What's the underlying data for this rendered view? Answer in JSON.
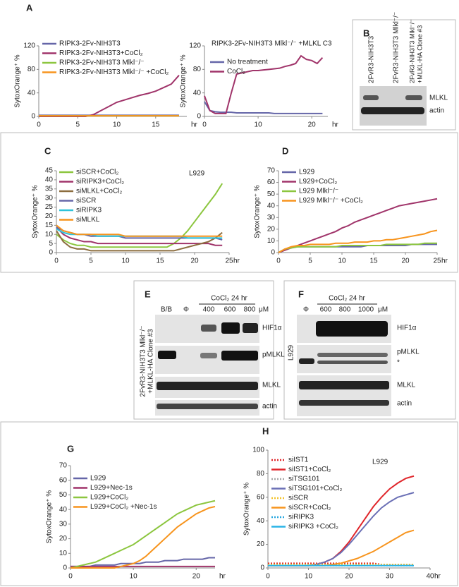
{
  "panel_labels": [
    "A",
    "B",
    "C",
    "D",
    "E",
    "F",
    "G",
    "H"
  ],
  "chart_data": [
    {
      "type": "line",
      "panel": "A",
      "ylabel": "SytoxOrange⁺ %",
      "xlabel": "hr",
      "x": [
        0,
        1,
        2,
        3,
        4,
        5,
        6,
        7,
        8,
        9,
        10,
        11,
        12,
        13,
        14,
        15,
        16,
        17,
        18
      ],
      "xlim": [
        0,
        19
      ],
      "xticks": [
        0,
        5,
        10,
        15
      ],
      "ylim": [
        0,
        120
      ],
      "yticks": [
        0,
        40,
        80,
        120
      ],
      "legend": "upper left",
      "series": [
        {
          "name": "RIPK3-2Fv-NIH3T3",
          "color": "#6566a8",
          "values": [
            2,
            2,
            2,
            2,
            2,
            2,
            2,
            2,
            2,
            2,
            2,
            2,
            2,
            2,
            2,
            2,
            2,
            2,
            2
          ]
        },
        {
          "name": "RIPK3-2Fv-NIH3T3+CoCl₂",
          "color": "#a0346a",
          "values": [
            0,
            0,
            0,
            0,
            0,
            0,
            0,
            3,
            10,
            17,
            24,
            28,
            32,
            36,
            39,
            43,
            49,
            55,
            70
          ]
        },
        {
          "name": "RIPK3-2Fv-NIH3T3 Mlkl⁻/⁻",
          "color": "#8cc63f",
          "values": [
            1,
            1,
            1,
            1,
            1,
            1,
            1,
            1,
            1,
            1,
            1,
            1,
            1,
            1,
            1,
            1,
            1,
            1,
            1
          ]
        },
        {
          "name": "RIPK3-2Fv-NIH3T3 Mlkl⁻/⁻ +CoCl₂",
          "color": "#f7941d",
          "values": [
            1,
            1,
            1,
            1,
            1,
            1,
            1,
            1,
            1,
            1,
            1,
            1,
            1,
            1,
            1,
            1,
            1,
            1,
            1
          ]
        }
      ]
    },
    {
      "type": "line",
      "title": "RIPK3-2Fv-NIH3T3 Mlkl⁻/⁻ +MLKL C3",
      "ylabel": "SytoxOrange⁺ %",
      "xlabel": "hr",
      "x": [
        0,
        1,
        2,
        3,
        4,
        5,
        6,
        7,
        8,
        9,
        10,
        11,
        12,
        13,
        14,
        15,
        16,
        17,
        18,
        19,
        20,
        21,
        22
      ],
      "xlim": [
        0,
        23
      ],
      "xticks": [
        0,
        10,
        20
      ],
      "ylim": [
        0,
        120
      ],
      "yticks": [
        0,
        40,
        80,
        120
      ],
      "legend": "upper left",
      "series": [
        {
          "name": "No treatment",
          "color": "#6566a8",
          "values": [
            25,
            10,
            8,
            7,
            7,
            7,
            6,
            6,
            6,
            6,
            6,
            6,
            6,
            5,
            5,
            5,
            5,
            5,
            5,
            5,
            5,
            5,
            5
          ]
        },
        {
          "name": "CoCl₂",
          "color": "#a0346a",
          "values": [
            35,
            10,
            5,
            5,
            5,
            40,
            72,
            74,
            76,
            78,
            78,
            79,
            80,
            81,
            82,
            85,
            87,
            90,
            103,
            97,
            95,
            90,
            100
          ]
        }
      ]
    },
    {
      "type": "line",
      "panel": "C",
      "annotation": "L929",
      "ylabel": "SytoxOrange⁺ %",
      "xlabel": "hr",
      "x": [
        0,
        1,
        2,
        3,
        4,
        5,
        6,
        7,
        8,
        9,
        10,
        11,
        12,
        13,
        14,
        15,
        16,
        17,
        18,
        19,
        20,
        21,
        22,
        23,
        24
      ],
      "xlim": [
        0,
        25
      ],
      "xticks": [
        0,
        5,
        10,
        15,
        20,
        25
      ],
      "ylim": [
        0,
        45
      ],
      "yticks": [
        0,
        5,
        10,
        15,
        20,
        25,
        30,
        35,
        40,
        45
      ],
      "legend": "upper left",
      "series": [
        {
          "name": "siSCR+CoCl₂",
          "color": "#8cc63f",
          "values": [
            10,
            7,
            5,
            4,
            4,
            3,
            3,
            3,
            3,
            3,
            3,
            3,
            3,
            3,
            3,
            3,
            3,
            5,
            8,
            12,
            17,
            22,
            27,
            32,
            38
          ]
        },
        {
          "name": "siRIPK3+CoCl₂",
          "color": "#a0346a",
          "values": [
            14,
            10,
            8,
            7,
            6,
            6,
            5,
            5,
            5,
            5,
            5,
            5,
            5,
            5,
            5,
            5,
            5,
            5,
            5,
            5,
            5,
            5,
            5,
            4,
            4
          ]
        },
        {
          "name": "siMLKL+CoCl₂",
          "color": "#8c6d3f",
          "values": [
            12,
            6,
            3,
            2,
            2,
            1,
            1,
            1,
            1,
            1,
            1,
            1,
            1,
            1,
            1,
            1,
            1,
            1,
            2,
            3,
            4,
            5,
            6,
            8,
            11
          ]
        },
        {
          "name": "siSCR",
          "color": "#6566a8",
          "values": [
            14,
            12,
            11,
            10,
            10,
            9,
            9,
            9,
            9,
            9,
            8,
            8,
            8,
            8,
            8,
            8,
            8,
            8,
            8,
            8,
            8,
            8,
            8,
            8,
            7
          ]
        },
        {
          "name": "siRIPK3",
          "color": "#2fc3d9",
          "values": [
            13,
            11,
            10,
            10,
            10,
            10,
            9,
            9,
            9,
            9,
            9,
            9,
            9,
            9,
            9,
            9,
            9,
            9,
            9,
            8,
            8,
            8,
            8,
            8,
            8
          ]
        },
        {
          "name": "siMLKL",
          "color": "#f7941d",
          "values": [
            15,
            12,
            11,
            10,
            10,
            10,
            10,
            10,
            10,
            10,
            9,
            9,
            9,
            9,
            9,
            9,
            9,
            9,
            9,
            9,
            9,
            9,
            9,
            9,
            9
          ]
        }
      ]
    },
    {
      "type": "line",
      "panel": "D",
      "ylabel": "SytoxOrange⁺ %",
      "xlabel": "hr",
      "x": [
        0,
        1,
        2,
        3,
        4,
        5,
        6,
        7,
        8,
        9,
        10,
        11,
        12,
        13,
        14,
        15,
        16,
        17,
        18,
        19,
        20,
        21,
        22,
        23,
        24,
        25
      ],
      "xlim": [
        0,
        25
      ],
      "xticks": [
        0,
        5,
        10,
        15,
        20,
        25
      ],
      "ylim": [
        0,
        70
      ],
      "yticks": [
        0,
        10,
        20,
        30,
        40,
        50,
        60,
        70
      ],
      "legend": "upper left",
      "series": [
        {
          "name": "L929",
          "color": "#6566a8",
          "values": [
            0,
            3,
            4,
            5,
            5,
            5,
            5,
            5,
            5,
            5,
            5,
            5,
            5,
            5,
            6,
            6,
            6,
            6,
            6,
            6,
            6,
            7,
            7,
            7,
            7,
            7
          ]
        },
        {
          "name": "L929+CoCl₂",
          "color": "#a0346a",
          "values": [
            0,
            2,
            4,
            6,
            8,
            10,
            12,
            14,
            16,
            18,
            21,
            23,
            26,
            28,
            30,
            32,
            34,
            36,
            38,
            40,
            41,
            42,
            43,
            44,
            45,
            46
          ]
        },
        {
          "name": "L929 Mlkl⁻/⁻",
          "color": "#8cc63f",
          "values": [
            0,
            3,
            4,
            5,
            5,
            5,
            5,
            5,
            5,
            5,
            6,
            6,
            6,
            6,
            6,
            6,
            6,
            7,
            7,
            7,
            7,
            7,
            7,
            8,
            8,
            8
          ]
        },
        {
          "name": "L929 Mlkl⁻/⁻ +CoCl₂",
          "color": "#f7941d",
          "values": [
            0,
            3,
            5,
            6,
            6,
            7,
            7,
            7,
            7,
            8,
            8,
            8,
            9,
            9,
            9,
            10,
            10,
            11,
            11,
            12,
            13,
            14,
            15,
            16,
            18,
            19
          ]
        }
      ]
    },
    {
      "type": "line",
      "panel": "G",
      "ylabel": "SytoxOrange⁺ %",
      "xlabel": "hr",
      "x": [
        0,
        1,
        2,
        3,
        4,
        5,
        6,
        7,
        8,
        9,
        10,
        11,
        12,
        13,
        14,
        15,
        16,
        17,
        18,
        19,
        20,
        21,
        22,
        23
      ],
      "xlim": [
        0,
        23
      ],
      "xticks": [
        0,
        10,
        20
      ],
      "ylim": [
        0,
        70
      ],
      "yticks": [
        0,
        10,
        20,
        30,
        40,
        50,
        60,
        70
      ],
      "legend": "upper left",
      "series": [
        {
          "name": "L929",
          "color": "#6566a8",
          "values": [
            1,
            1,
            1,
            1,
            2,
            2,
            2,
            2,
            3,
            3,
            3,
            3,
            4,
            4,
            4,
            5,
            5,
            5,
            6,
            6,
            6,
            6,
            7,
            7
          ]
        },
        {
          "name": "L929+Nec-1s",
          "color": "#a0346a",
          "values": [
            1,
            1,
            1,
            1,
            1,
            1,
            1,
            1,
            1,
            1,
            1,
            1,
            1,
            1,
            1,
            1,
            1,
            1,
            1,
            1,
            1,
            1,
            1,
            1
          ]
        },
        {
          "name": "L929+CoCl₂",
          "color": "#8cc63f",
          "values": [
            0,
            1,
            2,
            3,
            4,
            6,
            8,
            10,
            12,
            14,
            16,
            19,
            22,
            25,
            28,
            31,
            34,
            37,
            39,
            41,
            43,
            44,
            45,
            46
          ]
        },
        {
          "name": "L929+CoCl₂ +Nec-1s",
          "color": "#f7941d",
          "values": [
            0,
            0,
            0,
            0,
            0,
            0,
            0,
            0,
            1,
            2,
            3,
            5,
            8,
            12,
            16,
            20,
            24,
            28,
            31,
            34,
            37,
            39,
            41,
            42
          ]
        }
      ]
    },
    {
      "type": "line",
      "panel": "H",
      "annotation": "L929",
      "ylabel": "SytoxOrange⁺ %",
      "xlabel": "hr",
      "x": [
        0,
        2,
        4,
        6,
        8,
        10,
        12,
        14,
        16,
        18,
        20,
        22,
        24,
        26,
        28,
        30,
        32,
        34,
        36
      ],
      "xlim": [
        0,
        40
      ],
      "xticks": [
        0,
        10,
        20,
        30,
        40
      ],
      "ylim": [
        0,
        100
      ],
      "yticks": [
        0,
        20,
        40,
        60,
        80,
        100
      ],
      "legend": "upper left",
      "series": [
        {
          "name": "siIST1",
          "color": "#e0262b",
          "dotted": true,
          "values": [
            4,
            4,
            4,
            4,
            4,
            4,
            4,
            4,
            4,
            4,
            4,
            4,
            4,
            4,
            3,
            3,
            3,
            3,
            3
          ]
        },
        {
          "name": "siIST1+CoCl₂",
          "color": "#e0262b",
          "values": [
            2,
            2,
            2,
            2,
            2,
            2,
            3,
            5,
            8,
            14,
            22,
            32,
            42,
            52,
            60,
            67,
            72,
            76,
            78
          ]
        },
        {
          "name": "siTSG101",
          "color": "#a6a6a6",
          "dotted": true,
          "values": [
            3,
            3,
            3,
            3,
            3,
            3,
            3,
            3,
            3,
            3,
            3,
            3,
            3,
            3,
            3,
            3,
            3,
            3,
            3
          ]
        },
        {
          "name": "siTSG101+CoCl₂",
          "color": "#6a6fb5",
          "values": [
            2,
            2,
            2,
            2,
            2,
            2,
            3,
            5,
            8,
            13,
            20,
            28,
            36,
            44,
            51,
            56,
            60,
            62,
            64
          ]
        },
        {
          "name": "siSCR",
          "color": "#f4c32b",
          "dotted": true,
          "values": [
            3,
            3,
            3,
            3,
            3,
            3,
            3,
            3,
            3,
            3,
            3,
            3,
            3,
            3,
            3,
            3,
            3,
            3,
            3
          ]
        },
        {
          "name": "siSCR+CoCl₂",
          "color": "#f7941d",
          "values": [
            2,
            2,
            2,
            2,
            2,
            2,
            2,
            2,
            3,
            4,
            6,
            8,
            11,
            14,
            18,
            22,
            26,
            30,
            32
          ]
        },
        {
          "name": "siRIPK3",
          "color": "#2aa8e0",
          "dotted": true,
          "values": [
            2,
            2,
            2,
            2,
            2,
            2,
            2,
            2,
            2,
            2,
            2,
            2,
            2,
            2,
            2,
            2,
            2,
            2,
            2
          ]
        },
        {
          "name": "siRIPK3 +CoCl₂",
          "color": "#29b3e6",
          "values": [
            2,
            2,
            2,
            2,
            2,
            2,
            2,
            2,
            2,
            2,
            2,
            2,
            2,
            2,
            2,
            2,
            2,
            2,
            2
          ]
        }
      ]
    }
  ],
  "blots": [
    {
      "lanes": [
        [
          "2FvR3-NIH3T3"
        ],
        [
          "2FvR3-NIH3T3 Mlkl⁻/⁻"
        ],
        [
          "2FvR3-NIH3T3 Mlkl⁻/⁻",
          "+MLKL-HA Clone #3"
        ]
      ],
      "rows": [
        "MLKL",
        "actin"
      ]
    },
    {
      "treatment": "CoCl₂ 24 hr",
      "lanes": [
        "B/B",
        "Φ",
        "400",
        "600",
        "800"
      ],
      "unit": "μM",
      "side_label": [
        "2FvR3-NIH3T3 Mlkl⁻/⁻",
        "+MLKL-HA Clone #3"
      ],
      "rows": [
        "HIF1α",
        "pMLKL",
        "MLKL",
        "actin"
      ]
    },
    {
      "treatment": "CoCl₂ 24 hr",
      "lanes": [
        "Φ",
        "600",
        "800",
        "1000"
      ],
      "unit": "μM",
      "side_label": "L929",
      "rows": [
        "HIF1α",
        "pMLKL",
        "*",
        "MLKL",
        "actin"
      ]
    }
  ]
}
